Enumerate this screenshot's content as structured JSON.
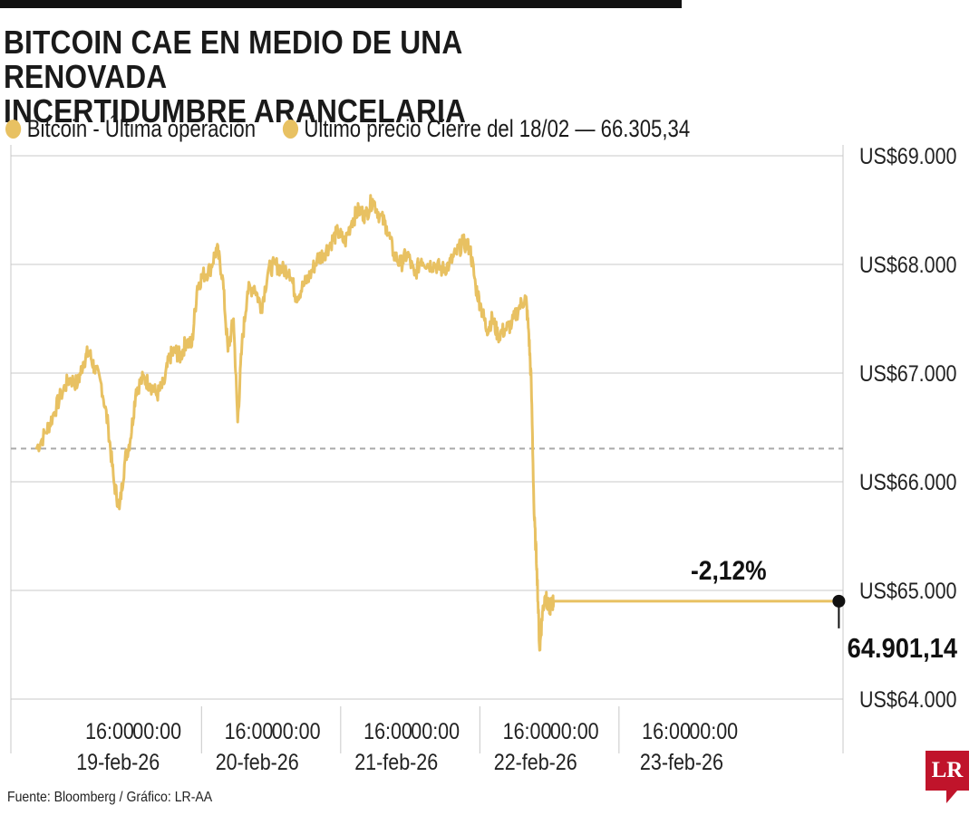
{
  "header": {
    "title_line1": "BITCOIN CAE EN MEDIO DE UNA RENOVADA",
    "title_line2": "INCERTIDUMBRE ARANCELARIA"
  },
  "legend": {
    "item1": "Bitcoin - Última operación",
    "item2": "Último precio Cierre del 18/02 — 66.305,34"
  },
  "colors": {
    "series": "#e8c162",
    "grid": "#c8c8c8",
    "reference": "#a9a9a9",
    "axis_text": "#222222",
    "logo": "#c0142b"
  },
  "footer": {
    "source": "Fuente: Bloomberg / Gráfico: LR-AA",
    "logo_text": "LR"
  },
  "chart_data": {
    "type": "line",
    "title": "BITCOIN CAE EN MEDIO DE UNA RENOVADA INCERTIDUMBRE ARANCELARIA",
    "ylim": [
      64000,
      69000
    ],
    "yticks": [
      69000,
      68000,
      67000,
      66000,
      65000,
      64000
    ],
    "ytick_labels": [
      "US$69.000",
      "US$68.000",
      "US$67.000",
      "US$66.000",
      "US$65.000",
      "US$64.000"
    ],
    "y_axis_position": "right",
    "grid": true,
    "legend_position": "top-left",
    "time_labels": [
      {
        "label": "16:00",
        "time": 0.71
      },
      {
        "label": "00:00",
        "time": 1.05
      },
      {
        "label": "16:00",
        "time": 1.71
      },
      {
        "label": "00:00",
        "time": 2.05
      },
      {
        "label": "16:00",
        "time": 2.71
      },
      {
        "label": "00:00",
        "time": 3.05
      },
      {
        "label": "16:00",
        "time": 3.71
      },
      {
        "label": "00:00",
        "time": 4.05
      },
      {
        "label": "16:00",
        "time": 4.71
      },
      {
        "label": "00:00",
        "time": 5.05
      }
    ],
    "day_labels": [
      {
        "label": "19-feb-26",
        "time": 0.77
      },
      {
        "label": "20-feb-26",
        "time": 1.77
      },
      {
        "label": "21-feb-26",
        "time": 2.77
      },
      {
        "label": "22-feb-26",
        "time": 3.77
      },
      {
        "label": "23-feb-26",
        "time": 4.82
      }
    ],
    "day_separators": [
      1.37,
      2.37,
      3.37,
      4.37
    ],
    "reference_line": {
      "value": 66305.34,
      "label": "Último precio Cierre del 18/02 — 66.305,34"
    },
    "series": [
      {
        "name": "Bitcoin - Última operación",
        "points": [
          [
            0.18,
            66300
          ],
          [
            0.25,
            66450
          ],
          [
            0.3,
            66600
          ],
          [
            0.36,
            66800
          ],
          [
            0.42,
            66950
          ],
          [
            0.48,
            66900
          ],
          [
            0.52,
            67100
          ],
          [
            0.56,
            67200
          ],
          [
            0.6,
            67050
          ],
          [
            0.65,
            66900
          ],
          [
            0.7,
            66500
          ],
          [
            0.74,
            66000
          ],
          [
            0.78,
            65750
          ],
          [
            0.82,
            66200
          ],
          [
            0.86,
            66400
          ],
          [
            0.9,
            66850
          ],
          [
            0.95,
            66950
          ],
          [
            1.0,
            66900
          ],
          [
            1.05,
            66800
          ],
          [
            1.1,
            66900
          ],
          [
            1.14,
            67150
          ],
          [
            1.18,
            67200
          ],
          [
            1.22,
            67150
          ],
          [
            1.26,
            67300
          ],
          [
            1.3,
            67250
          ],
          [
            1.34,
            67800
          ],
          [
            1.38,
            67900
          ],
          [
            1.43,
            67950
          ],
          [
            1.48,
            68150
          ],
          [
            1.52,
            67900
          ],
          [
            1.56,
            67200
          ],
          [
            1.6,
            67500
          ],
          [
            1.63,
            66550
          ],
          [
            1.66,
            67250
          ],
          [
            1.7,
            67750
          ],
          [
            1.75,
            67800
          ],
          [
            1.8,
            67600
          ],
          [
            1.85,
            67950
          ],
          [
            1.9,
            68000
          ],
          [
            1.95,
            67950
          ],
          [
            2.0,
            67950
          ],
          [
            2.05,
            67700
          ],
          [
            2.1,
            67800
          ],
          [
            2.15,
            67900
          ],
          [
            2.2,
            68050
          ],
          [
            2.25,
            68100
          ],
          [
            2.3,
            68200
          ],
          [
            2.35,
            68300
          ],
          [
            2.4,
            68200
          ],
          [
            2.45,
            68400
          ],
          [
            2.5,
            68500
          ],
          [
            2.55,
            68450
          ],
          [
            2.6,
            68600
          ],
          [
            2.65,
            68450
          ],
          [
            2.7,
            68350
          ],
          [
            2.75,
            68100
          ],
          [
            2.8,
            68000
          ],
          [
            2.85,
            68100
          ],
          [
            2.9,
            67900
          ],
          [
            2.95,
            68050
          ],
          [
            3.0,
            68000
          ],
          [
            3.05,
            68000
          ],
          [
            3.1,
            67950
          ],
          [
            3.15,
            68000
          ],
          [
            3.2,
            68100
          ],
          [
            3.25,
            68200
          ],
          [
            3.3,
            68150
          ],
          [
            3.34,
            67800
          ],
          [
            3.38,
            67600
          ],
          [
            3.42,
            67400
          ],
          [
            3.46,
            67500
          ],
          [
            3.5,
            67350
          ],
          [
            3.55,
            67400
          ],
          [
            3.6,
            67450
          ],
          [
            3.65,
            67600
          ],
          [
            3.7,
            67700
          ],
          [
            3.72,
            67400
          ],
          [
            3.74,
            66900
          ],
          [
            3.76,
            65700
          ],
          [
            3.78,
            65200
          ],
          [
            3.8,
            64450
          ],
          [
            3.82,
            64800
          ],
          [
            3.84,
            64950
          ],
          [
            3.86,
            64850
          ],
          [
            3.88,
            64850
          ],
          [
            3.9,
            64901.14
          ],
          [
            5.95,
            64901.14
          ]
        ]
      }
    ],
    "last_value": 64901.14,
    "last_value_label": "64.901,14",
    "change_label": "-2,12%"
  }
}
